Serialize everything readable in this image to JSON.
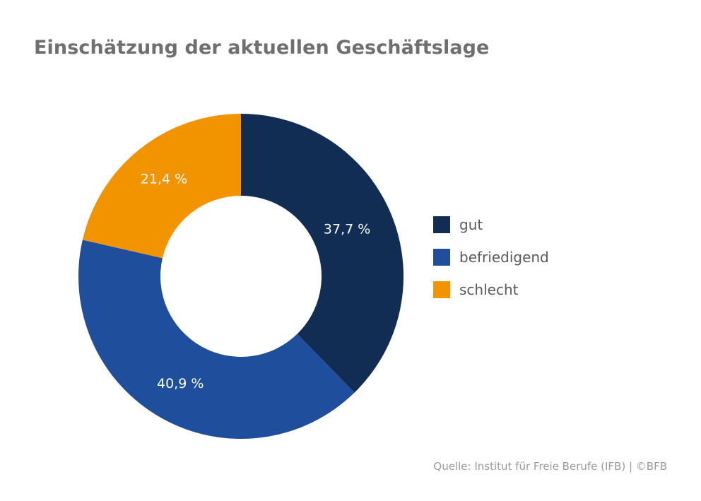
{
  "chart_data": {
    "type": "pie",
    "title": "Einschätzung der aktuellen Geschäftslage",
    "categories": [
      "gut",
      "befriedigend",
      "schlecht"
    ],
    "values": [
      37.7,
      40.9,
      21.4
    ],
    "labels": [
      "37,7 %",
      "40,9 %",
      "21,4 %"
    ],
    "colors": [
      "#112d54",
      "#1f4f9c",
      "#f29400"
    ],
    "donut": true,
    "legend": "right",
    "source": "Quelle: Institut für Freie Berufe (IFB) | ©BFB"
  }
}
